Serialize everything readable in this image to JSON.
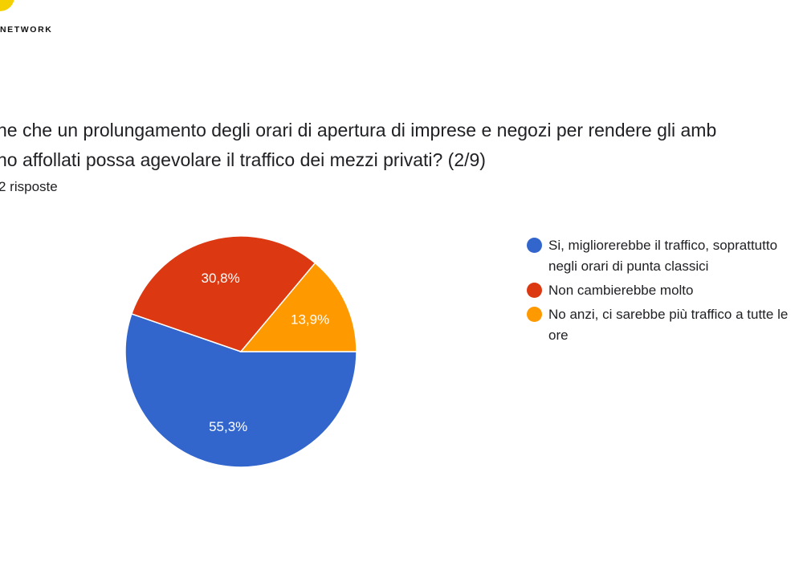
{
  "header": {
    "brand": "NETWORK"
  },
  "question": {
    "lines": [
      "ne che un prolungamento degli orari di apertura di imprese e negozi per rendere gli amb",
      "no affollati possa agevolare il traffico dei mezzi privati?  (2/9)"
    ],
    "responses": "2 risposte"
  },
  "colors": {
    "blue": "#3366cc",
    "red": "#dc3912",
    "orange": "#ff9900",
    "brand_yellow": "#f5d000"
  },
  "chart_data": {
    "type": "pie",
    "categories": [
      "Si, migliorerebbe il traffico, soprattutto negli orari di punta classici",
      "Non cambierebbe molto",
      "No anzi, ci sarebbe più traffico a tutte le ore"
    ],
    "values": [
      55.3,
      30.8,
      13.9
    ],
    "value_labels": [
      "55,3%",
      "30,8%",
      "13,9%"
    ],
    "legend": [
      {
        "lines": [
          "Si, migliorerebbe il traffico, soprattutto",
          "negli orari di punta classici"
        ],
        "color": "#3366cc"
      },
      {
        "lines": [
          "Non cambierebbe molto"
        ],
        "color": "#dc3912"
      },
      {
        "lines": [
          "No anzi, ci sarebbe più traffico a tutte le",
          "ore"
        ],
        "color": "#ff9900"
      }
    ],
    "colors": [
      "#3366cc",
      "#dc3912",
      "#ff9900"
    ],
    "legend_position": "right"
  }
}
